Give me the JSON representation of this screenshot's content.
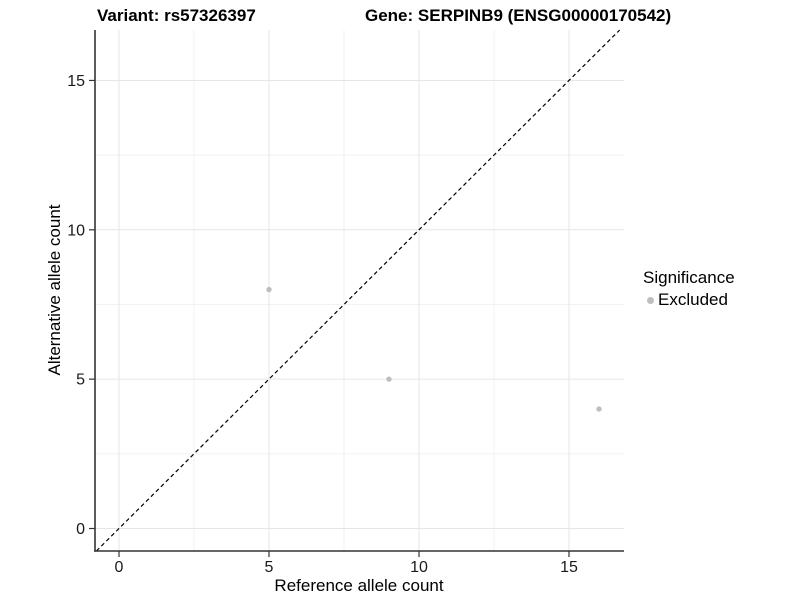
{
  "figure": {
    "title_left": "Variant: rs57326397",
    "title_right": "Gene: SERPINB9 (ENSG00000170542)"
  },
  "axes": {
    "x": {
      "label": "Reference allele count"
    },
    "y": {
      "label": "Alternative allele count"
    }
  },
  "legend": {
    "title": "Significance",
    "items": [
      {
        "label": "Excluded",
        "color": "#bebebe"
      }
    ]
  },
  "colors": {
    "background": "#ffffff",
    "grid_major": "#e6e6e6",
    "grid_minor": "#f2f2f2",
    "axis_line": "#333333",
    "tick_mark": "#333333",
    "tick_text": "#1a1a1a",
    "point": "#bebebe",
    "reference_line": "#000000"
  },
  "chart_data": {
    "type": "scatter",
    "title": "Variant: rs57326397    Gene: SERPINB9 (ENSG00000170542)",
    "xlabel": "Reference allele count",
    "ylabel": "Alternative allele count",
    "xlim": [
      -0.8,
      16.85
    ],
    "ylim": [
      -0.75,
      16.7
    ],
    "x_ticks": [
      0,
      5,
      10,
      15
    ],
    "y_ticks": [
      0,
      5,
      10,
      15
    ],
    "x_minor_ticks": [
      2.5,
      7.5,
      12.5
    ],
    "y_minor_ticks": [
      2.5,
      7.5,
      12.5
    ],
    "grid": "major and minor, light grey on white",
    "legend_title": "Significance",
    "legend_position": "right-center",
    "series": [
      {
        "name": "Excluded",
        "color": "#bebebe",
        "marker": "circle",
        "points": [
          [
            5,
            8
          ],
          [
            9,
            5
          ],
          [
            16,
            4
          ]
        ]
      }
    ],
    "reference_line": {
      "kind": "identity y=x",
      "style": "dashed",
      "color": "#000000"
    }
  }
}
